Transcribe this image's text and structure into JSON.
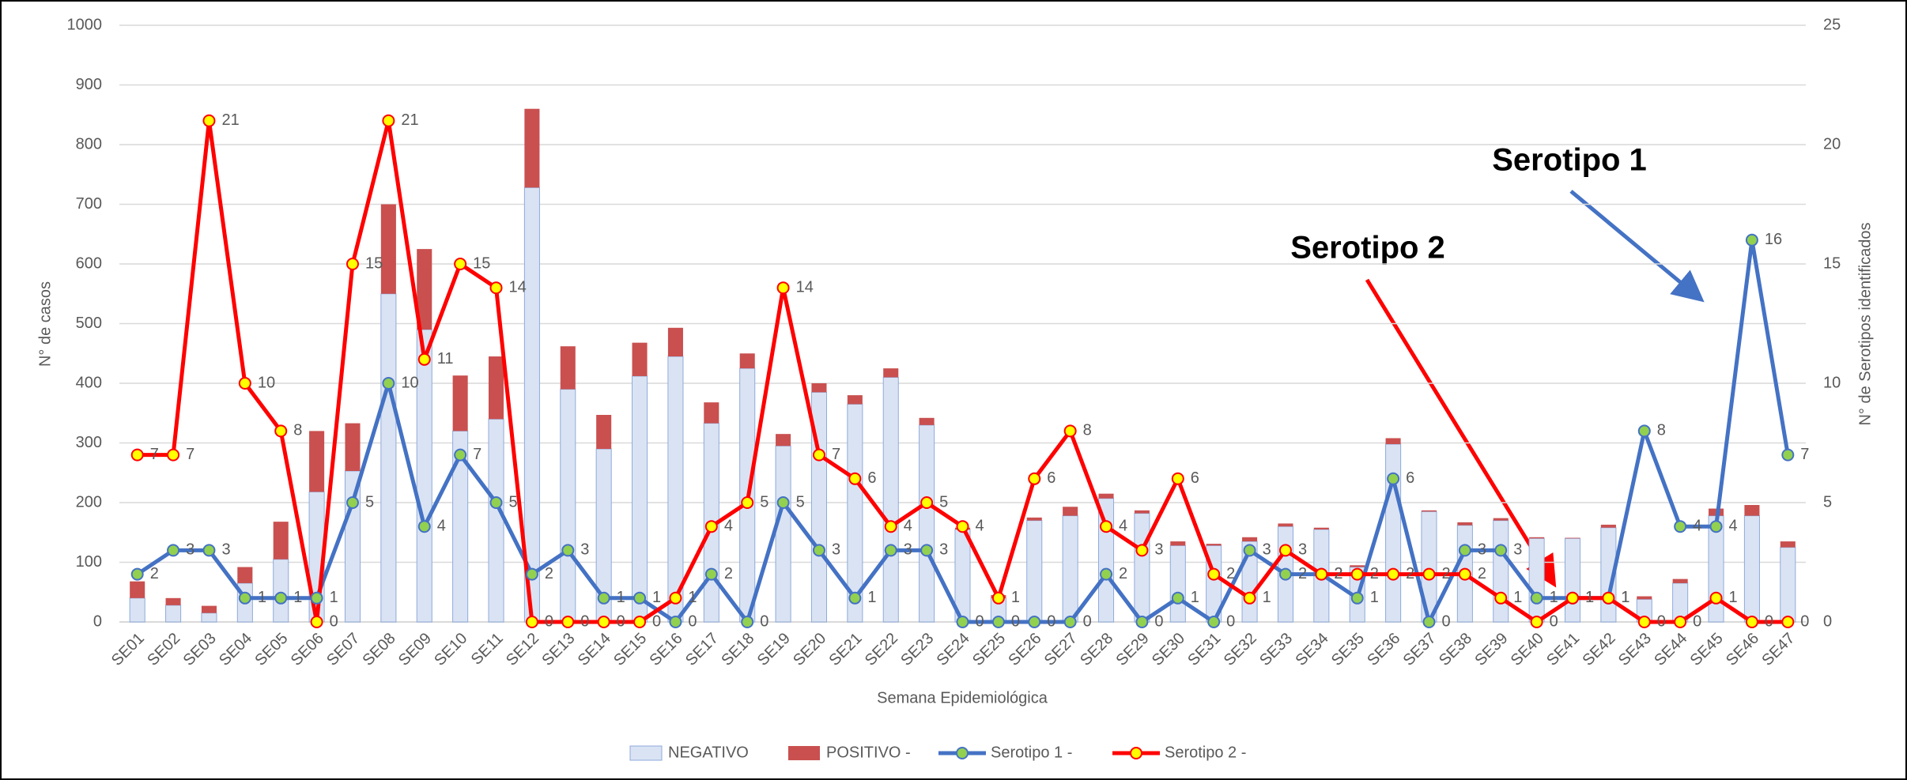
{
  "chart_data": {
    "type": "bar",
    "stacked": true,
    "x_label": "Semana Epidemiológica",
    "y_label": "N° de casos",
    "y2_label": "N° de Serotipos identificados",
    "annotations": [
      "Serotipo 1",
      "Serotipo 2"
    ],
    "categories": [
      "SE01",
      "SE02",
      "SE03",
      "SE04",
      "SE05",
      "SE06",
      "SE07",
      "SE08",
      "SE09",
      "SE10",
      "SE11",
      "SE12",
      "SE13",
      "SE14",
      "SE15",
      "SE16",
      "SE17",
      "SE18",
      "SE19",
      "SE20",
      "SE21",
      "SE22",
      "SE23",
      "SE24",
      "SE25",
      "SE26",
      "SE27",
      "SE28",
      "SE29",
      "SE30",
      "SE31",
      "SE32",
      "SE33",
      "SE34",
      "SE35",
      "SE36",
      "SE37",
      "SE38",
      "SE39",
      "SE40",
      "SE41",
      "SE42",
      "SE43",
      "SE44",
      "SE45",
      "SE46",
      "SE47"
    ],
    "ylim": [
      0,
      1000
    ],
    "yticks": [
      0,
      100,
      200,
      300,
      400,
      500,
      600,
      700,
      800,
      900,
      1000
    ],
    "y2lim": [
      0,
      25
    ],
    "y2ticks": [
      0,
      5,
      10,
      15,
      20,
      25
    ],
    "grid": true,
    "legend": "bottom",
    "series": [
      {
        "name": "NEGATIVO",
        "type": "bar",
        "color": "#dae3f3",
        "values": [
          40,
          28,
          15,
          65,
          105,
          218,
          253,
          550,
          490,
          320,
          340,
          728,
          390,
          290,
          412,
          445,
          333,
          425,
          295,
          385,
          365,
          410,
          330,
          155,
          40,
          170,
          178,
          207,
          182,
          128,
          128,
          135,
          160,
          155,
          92,
          298,
          185,
          162,
          170,
          140,
          140,
          158,
          38,
          65,
          178,
          178,
          125
        ]
      },
      {
        "name": "POSITIVO -",
        "type": "bar",
        "color": "#c9504f",
        "values": [
          28,
          12,
          12,
          27,
          63,
          102,
          80,
          150,
          135,
          93,
          105,
          132,
          72,
          57,
          56,
          48,
          35,
          25,
          20,
          15,
          15,
          15,
          12,
          3,
          5,
          5,
          15,
          8,
          5,
          7,
          3,
          7,
          5,
          3,
          3,
          10,
          2,
          5,
          4,
          2,
          1,
          5,
          5,
          7,
          12,
          18,
          10
        ]
      },
      {
        "name": "Serotipo 1 -",
        "type": "line",
        "axis": "y2",
        "color": "#4472c4",
        "marker_color": "#92d050",
        "values": [
          2,
          3,
          3,
          1,
          1,
          1,
          5,
          10,
          4,
          7,
          5,
          2,
          3,
          1,
          1,
          0,
          2,
          0,
          5,
          3,
          1,
          3,
          3,
          0,
          0,
          0,
          0,
          2,
          0,
          1,
          0,
          3,
          2,
          2,
          1,
          6,
          0,
          3,
          3,
          1,
          1,
          1,
          8,
          4,
          4,
          16,
          7
        ]
      },
      {
        "name": "Serotipo 2 -",
        "type": "line",
        "axis": "y2",
        "color": "#ff0000",
        "marker_color": "#ffff00",
        "values": [
          7,
          7,
          21,
          10,
          8,
          0,
          15,
          21,
          11,
          15,
          14,
          0,
          0,
          0,
          0,
          1,
          4,
          5,
          14,
          7,
          6,
          4,
          5,
          4,
          1,
          6,
          8,
          4,
          3,
          6,
          2,
          1,
          3,
          2,
          2,
          2,
          2,
          2,
          1,
          0,
          1,
          1,
          0,
          0,
          1,
          0,
          0
        ]
      }
    ]
  }
}
